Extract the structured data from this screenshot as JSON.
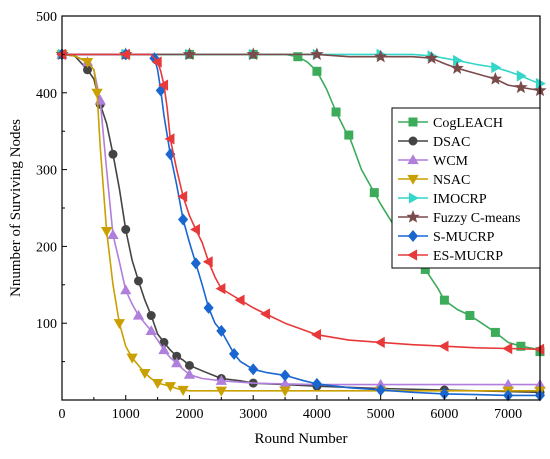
{
  "chart_data": {
    "type": "line",
    "title": "",
    "xlabel": "Round Number",
    "ylabel": "Nnumber of Surviving Nodes",
    "xlim": [
      0,
      7500
    ],
    "ylim": [
      0,
      500
    ],
    "xticks": [
      0,
      1000,
      2000,
      3000,
      4000,
      5000,
      6000,
      7000
    ],
    "yticks": [
      100,
      200,
      300,
      400,
      500
    ],
    "grid": false,
    "legend": "right",
    "series": [
      {
        "name": "CogLEACH",
        "color": "#3cab5a",
        "marker": "square",
        "x": [
          0,
          500,
          1000,
          1500,
          2000,
          2500,
          3000,
          3500,
          3700,
          3850,
          4000,
          4150,
          4300,
          4450,
          4500,
          4700,
          4900,
          5000,
          5300,
          5500,
          5700,
          5900,
          6000,
          6200,
          6400,
          6550,
          6800,
          7000,
          7200,
          7400,
          7500
        ],
        "y": [
          450,
          450,
          450,
          450,
          450,
          450,
          450,
          450,
          447,
          440,
          428,
          405,
          375,
          350,
          345,
          300,
          270,
          255,
          215,
          190,
          170,
          145,
          130,
          118,
          110,
          102,
          88,
          75,
          70,
          67,
          63
        ]
      },
      {
        "name": "DSAC",
        "color": "#444444",
        "marker": "circle",
        "x": [
          0,
          200,
          400,
          500,
          600,
          700,
          800,
          900,
          1000,
          1100,
          1200,
          1300,
          1400,
          1500,
          1600,
          1700,
          1800,
          1900,
          2000,
          2200,
          2500,
          2800,
          3000,
          3500,
          4000,
          5000,
          6000,
          7000,
          7500
        ],
        "y": [
          450,
          448,
          430,
          418,
          385,
          360,
          320,
          275,
          222,
          182,
          155,
          130,
          110,
          86,
          75,
          65,
          57,
          52,
          45,
          38,
          28,
          25,
          22,
          20,
          18,
          15,
          13,
          11,
          10
        ]
      },
      {
        "name": "WCM",
        "color": "#b07fdc",
        "marker": "triangle-up",
        "x": [
          0,
          200,
          400,
          500,
          600,
          700,
          800,
          900,
          1000,
          1100,
          1200,
          1300,
          1400,
          1500,
          1600,
          1700,
          1800,
          1900,
          2000,
          2200,
          2500,
          3000,
          3500,
          4000,
          5000,
          6000,
          7000,
          7500
        ],
        "y": [
          450,
          448,
          440,
          430,
          390,
          300,
          215,
          180,
          143,
          125,
          110,
          100,
          90,
          78,
          65,
          55,
          48,
          40,
          33,
          28,
          25,
          22,
          21,
          20,
          20,
          20,
          20,
          20
        ]
      },
      {
        "name": "NSAC",
        "color": "#c9a000",
        "marker": "triangle-down",
        "x": [
          0,
          200,
          400,
          500,
          550,
          600,
          700,
          800,
          900,
          1000,
          1100,
          1200,
          1300,
          1400,
          1500,
          1600,
          1700,
          1800,
          1900,
          2000,
          2500,
          3000,
          3500,
          4000,
          5000,
          6000,
          7000,
          7500
        ],
        "y": [
          450,
          448,
          440,
          430,
          400,
          330,
          220,
          150,
          100,
          70,
          55,
          45,
          35,
          28,
          22,
          20,
          18,
          15,
          13,
          12,
          12,
          12,
          12,
          12,
          12,
          12,
          12,
          12
        ]
      },
      {
        "name": "IMOCRP",
        "color": "#33d6c8",
        "marker": "triangle-right",
        "x": [
          0,
          500,
          1000,
          1500,
          2000,
          2500,
          3000,
          3500,
          4000,
          4500,
          5000,
          5500,
          5800,
          6000,
          6200,
          6500,
          6800,
          7000,
          7200,
          7400,
          7500
        ],
        "y": [
          450,
          450,
          450,
          450,
          450,
          450,
          450,
          450,
          450,
          450,
          450,
          450,
          448,
          445,
          442,
          437,
          433,
          428,
          422,
          415,
          412
        ]
      },
      {
        "name": "Fuzzy C-means",
        "color": "#7b4a4a",
        "marker": "star",
        "x": [
          0,
          500,
          1000,
          1500,
          2000,
          2500,
          3000,
          3500,
          4000,
          4500,
          5000,
          5500,
          5800,
          6000,
          6200,
          6500,
          6800,
          7000,
          7200,
          7500
        ],
        "y": [
          450,
          450,
          450,
          450,
          450,
          450,
          450,
          450,
          450,
          447,
          447,
          447,
          445,
          438,
          432,
          425,
          418,
          410,
          407,
          403
        ]
      },
      {
        "name": "S-MUCRP",
        "color": "#1a66d0",
        "marker": "diamond",
        "x": [
          0,
          500,
          1000,
          1400,
          1450,
          1500,
          1550,
          1600,
          1700,
          1800,
          1900,
          2000,
          2100,
          2200,
          2300,
          2400,
          2500,
          2600,
          2700,
          2800,
          3000,
          3200,
          3500,
          3800,
          4000,
          4500,
          5000,
          5500,
          6000,
          6500,
          7000,
          7500
        ],
        "y": [
          450,
          450,
          450,
          450,
          445,
          430,
          403,
          370,
          320,
          280,
          235,
          205,
          178,
          150,
          120,
          100,
          90,
          75,
          60,
          50,
          40,
          36,
          32,
          25,
          21,
          16,
          13,
          10,
          8,
          7,
          6,
          6
        ]
      },
      {
        "name": "ES-MUCRP",
        "color": "#e8393a",
        "marker": "triangle-left",
        "x": [
          0,
          500,
          1000,
          1400,
          1500,
          1550,
          1600,
          1650,
          1700,
          1800,
          1900,
          2000,
          2100,
          2200,
          2300,
          2400,
          2500,
          2600,
          2800,
          3000,
          3200,
          3500,
          4000,
          4500,
          5000,
          5500,
          6000,
          6500,
          7000,
          7500
        ],
        "y": [
          450,
          450,
          450,
          450,
          440,
          428,
          410,
          380,
          340,
          300,
          265,
          240,
          222,
          205,
          180,
          160,
          145,
          140,
          130,
          120,
          112,
          100,
          85,
          78,
          75,
          72,
          70,
          68,
          67,
          66
        ]
      }
    ]
  }
}
